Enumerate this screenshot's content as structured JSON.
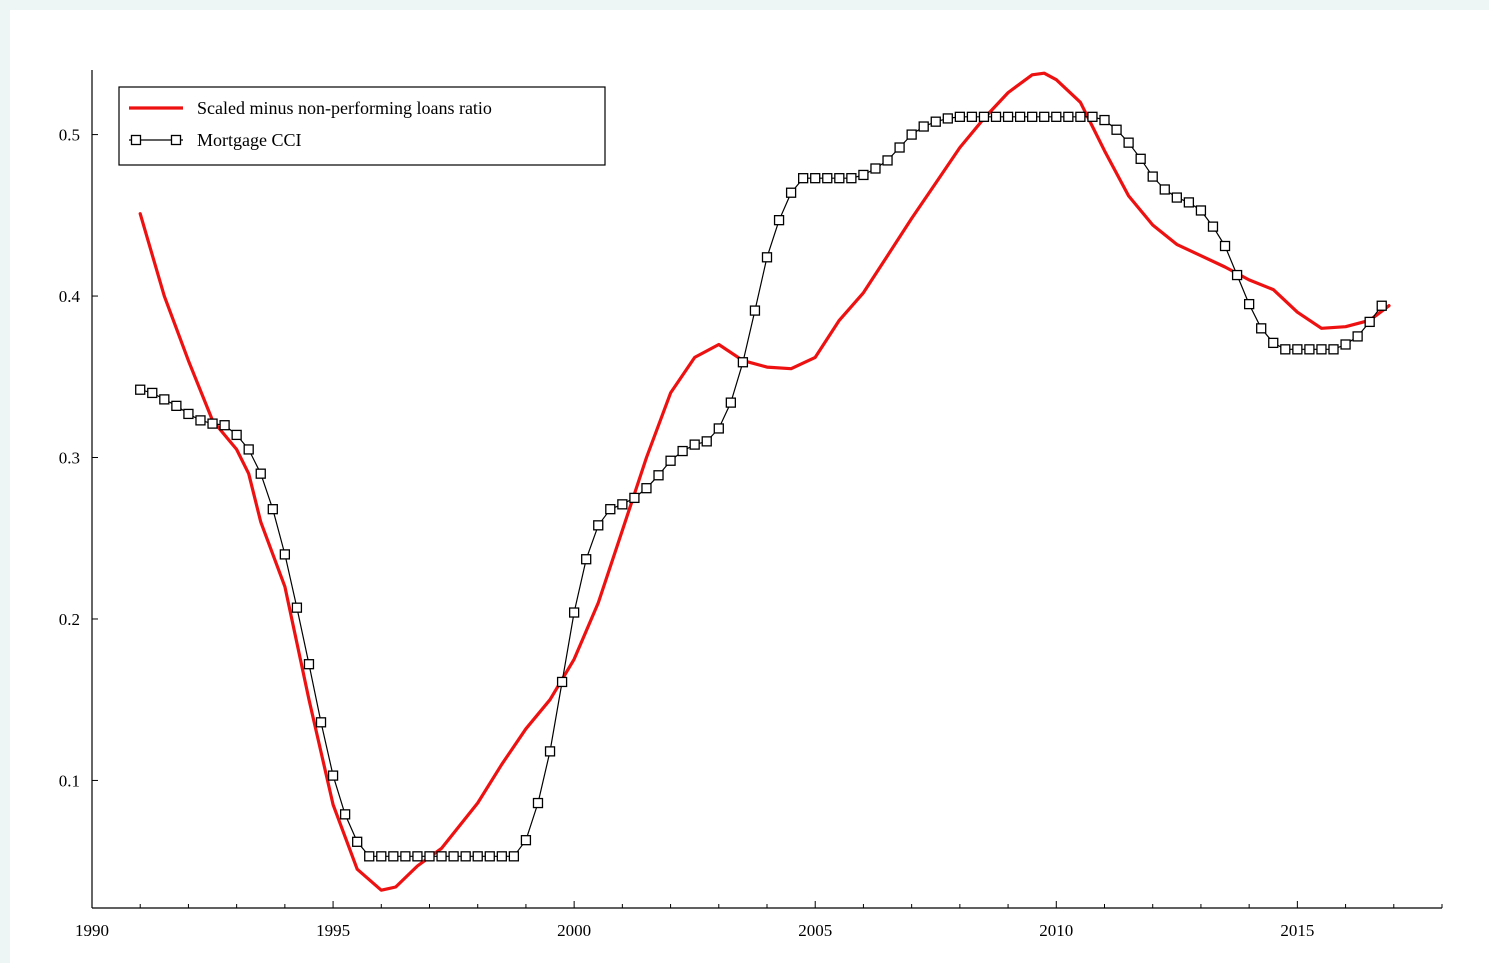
{
  "chart_data": {
    "type": "line",
    "title": "",
    "xlabel": "",
    "ylabel": "",
    "xlim": [
      1990,
      2018
    ],
    "ylim": [
      0.021,
      0.54
    ],
    "x_ticks": [
      1990,
      1995,
      2000,
      2005,
      2010,
      2015
    ],
    "y_ticks": [
      0.1,
      0.2,
      0.3,
      0.4,
      0.5
    ],
    "grid": false,
    "legend_position": "top-left",
    "series": [
      {
        "name": "Scaled minus non-performing loans ratio",
        "color": "#ee1111",
        "marker": "none",
        "points": [
          [
            1991.0,
            0.451
          ],
          [
            1991.5,
            0.4
          ],
          [
            1992.0,
            0.36
          ],
          [
            1992.5,
            0.323
          ],
          [
            1993.0,
            0.305
          ],
          [
            1993.25,
            0.29
          ],
          [
            1993.5,
            0.26
          ],
          [
            1994.0,
            0.22
          ],
          [
            1994.5,
            0.15
          ],
          [
            1995.0,
            0.085
          ],
          [
            1995.5,
            0.045
          ],
          [
            1996.0,
            0.032
          ],
          [
            1996.3,
            0.034
          ],
          [
            1996.75,
            0.047
          ],
          [
            1997.25,
            0.058
          ],
          [
            1998.0,
            0.086
          ],
          [
            1998.5,
            0.11
          ],
          [
            1999.0,
            0.132
          ],
          [
            1999.5,
            0.15
          ],
          [
            2000.0,
            0.175
          ],
          [
            2000.5,
            0.21
          ],
          [
            2001.0,
            0.255
          ],
          [
            2001.5,
            0.3
          ],
          [
            2002.0,
            0.34
          ],
          [
            2002.5,
            0.362
          ],
          [
            2003.0,
            0.37
          ],
          [
            2003.5,
            0.36
          ],
          [
            2004.0,
            0.356
          ],
          [
            2004.5,
            0.355
          ],
          [
            2005.0,
            0.362
          ],
          [
            2005.5,
            0.385
          ],
          [
            2006.0,
            0.402
          ],
          [
            2006.5,
            0.425
          ],
          [
            2007.0,
            0.448
          ],
          [
            2007.5,
            0.47
          ],
          [
            2008.0,
            0.492
          ],
          [
            2008.5,
            0.51
          ],
          [
            2009.0,
            0.526
          ],
          [
            2009.5,
            0.537
          ],
          [
            2009.75,
            0.538
          ],
          [
            2010.0,
            0.534
          ],
          [
            2010.5,
            0.52
          ],
          [
            2011.0,
            0.49
          ],
          [
            2011.5,
            0.462
          ],
          [
            2012.0,
            0.444
          ],
          [
            2012.5,
            0.432
          ],
          [
            2013.0,
            0.425
          ],
          [
            2013.5,
            0.418
          ],
          [
            2014.0,
            0.41
          ],
          [
            2014.5,
            0.404
          ],
          [
            2015.0,
            0.39
          ],
          [
            2015.5,
            0.38
          ],
          [
            2016.0,
            0.381
          ],
          [
            2016.5,
            0.385
          ],
          [
            2016.9,
            0.394
          ]
        ]
      },
      {
        "name": "Mortgage CCI",
        "color": "#000000",
        "marker": "square",
        "points": [
          [
            1991.0,
            0.342
          ],
          [
            1991.25,
            0.34
          ],
          [
            1991.5,
            0.336
          ],
          [
            1991.75,
            0.332
          ],
          [
            1992.0,
            0.327
          ],
          [
            1992.25,
            0.323
          ],
          [
            1992.5,
            0.321
          ],
          [
            1992.75,
            0.32
          ],
          [
            1993.0,
            0.314
          ],
          [
            1993.25,
            0.305
          ],
          [
            1993.5,
            0.29
          ],
          [
            1993.75,
            0.268
          ],
          [
            1994.0,
            0.24
          ],
          [
            1994.25,
            0.207
          ],
          [
            1994.5,
            0.172
          ],
          [
            1994.75,
            0.136
          ],
          [
            1995.0,
            0.103
          ],
          [
            1995.25,
            0.079
          ],
          [
            1995.5,
            0.062
          ],
          [
            1995.75,
            0.053
          ],
          [
            1996.0,
            0.053
          ],
          [
            1996.25,
            0.053
          ],
          [
            1996.5,
            0.053
          ],
          [
            1996.75,
            0.053
          ],
          [
            1997.0,
            0.053
          ],
          [
            1997.25,
            0.053
          ],
          [
            1997.5,
            0.053
          ],
          [
            1997.75,
            0.053
          ],
          [
            1998.0,
            0.053
          ],
          [
            1998.25,
            0.053
          ],
          [
            1998.5,
            0.053
          ],
          [
            1998.75,
            0.053
          ],
          [
            1999.0,
            0.063
          ],
          [
            1999.25,
            0.086
          ],
          [
            1999.5,
            0.118
          ],
          [
            1999.75,
            0.161
          ],
          [
            2000.0,
            0.204
          ],
          [
            2000.25,
            0.237
          ],
          [
            2000.5,
            0.258
          ],
          [
            2000.75,
            0.268
          ],
          [
            2001.0,
            0.271
          ],
          [
            2001.25,
            0.275
          ],
          [
            2001.5,
            0.281
          ],
          [
            2001.75,
            0.289
          ],
          [
            2002.0,
            0.298
          ],
          [
            2002.25,
            0.304
          ],
          [
            2002.5,
            0.308
          ],
          [
            2002.75,
            0.31
          ],
          [
            2003.0,
            0.318
          ],
          [
            2003.25,
            0.334
          ],
          [
            2003.5,
            0.359
          ],
          [
            2003.75,
            0.391
          ],
          [
            2004.0,
            0.424
          ],
          [
            2004.25,
            0.447
          ],
          [
            2004.5,
            0.464
          ],
          [
            2004.75,
            0.473
          ],
          [
            2005.0,
            0.473
          ],
          [
            2005.25,
            0.473
          ],
          [
            2005.5,
            0.473
          ],
          [
            2005.75,
            0.473
          ],
          [
            2006.0,
            0.475
          ],
          [
            2006.25,
            0.479
          ],
          [
            2006.5,
            0.484
          ],
          [
            2006.75,
            0.492
          ],
          [
            2007.0,
            0.5
          ],
          [
            2007.25,
            0.505
          ],
          [
            2007.5,
            0.508
          ],
          [
            2007.75,
            0.51
          ],
          [
            2008.0,
            0.511
          ],
          [
            2008.25,
            0.511
          ],
          [
            2008.5,
            0.511
          ],
          [
            2008.75,
            0.511
          ],
          [
            2009.0,
            0.511
          ],
          [
            2009.25,
            0.511
          ],
          [
            2009.5,
            0.511
          ],
          [
            2009.75,
            0.511
          ],
          [
            2010.0,
            0.511
          ],
          [
            2010.25,
            0.511
          ],
          [
            2010.5,
            0.511
          ],
          [
            2010.75,
            0.511
          ],
          [
            2011.0,
            0.509
          ],
          [
            2011.25,
            0.503
          ],
          [
            2011.5,
            0.495
          ],
          [
            2011.75,
            0.485
          ],
          [
            2012.0,
            0.474
          ],
          [
            2012.25,
            0.466
          ],
          [
            2012.5,
            0.461
          ],
          [
            2012.75,
            0.458
          ],
          [
            2013.0,
            0.453
          ],
          [
            2013.25,
            0.443
          ],
          [
            2013.5,
            0.431
          ],
          [
            2013.75,
            0.413
          ],
          [
            2014.0,
            0.395
          ],
          [
            2014.25,
            0.38
          ],
          [
            2014.5,
            0.371
          ],
          [
            2014.75,
            0.367
          ],
          [
            2015.0,
            0.367
          ],
          [
            2015.25,
            0.367
          ],
          [
            2015.5,
            0.367
          ],
          [
            2015.75,
            0.367
          ],
          [
            2016.0,
            0.37
          ],
          [
            2016.25,
            0.375
          ],
          [
            2016.5,
            0.384
          ],
          [
            2016.75,
            0.394
          ]
        ]
      }
    ]
  }
}
